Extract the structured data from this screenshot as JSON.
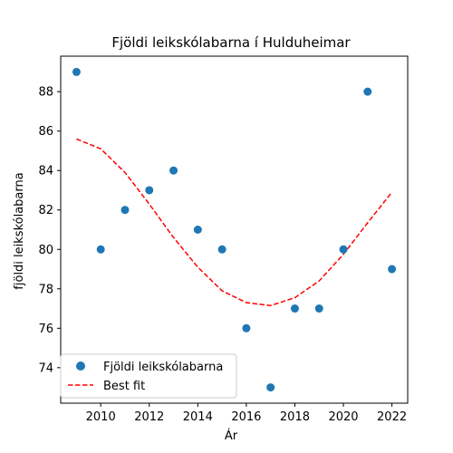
{
  "chart_data": {
    "type": "scatter",
    "title": "Fjöldi leikskólabarna í Hulduheimar",
    "xlabel": "Ár",
    "ylabel": "fjöldi leikskólabarna",
    "xlim": [
      2008.35,
      2022.65
    ],
    "ylim": [
      72.2,
      89.8
    ],
    "xticks": [
      2010,
      2012,
      2014,
      2016,
      2018,
      2020,
      2022
    ],
    "yticks": [
      74,
      76,
      78,
      80,
      82,
      84,
      86,
      88
    ],
    "grid": false,
    "legend_position": "lower-left",
    "series": [
      {
        "name": "Fjöldi leikskólabarna",
        "kind": "scatter",
        "color": "#1f77b4",
        "x": [
          2009,
          2010,
          2011,
          2012,
          2013,
          2014,
          2015,
          2016,
          2017,
          2018,
          2019,
          2020,
          2021,
          2022
        ],
        "y": [
          89,
          80,
          82,
          83,
          84,
          81,
          80,
          76,
          73,
          77,
          77,
          80,
          88,
          79
        ]
      },
      {
        "name": "Best fit",
        "kind": "line",
        "style": "dashed",
        "color": "#ff0000",
        "x": [
          2009,
          2010,
          2011,
          2012,
          2013,
          2014,
          2015,
          2016,
          2017,
          2018,
          2019,
          2020,
          2021,
          2022
        ],
        "y": [
          85.6,
          85.1,
          83.9,
          82.3,
          80.6,
          79.1,
          77.9,
          77.3,
          77.15,
          77.55,
          78.4,
          79.75,
          81.35,
          82.9
        ]
      }
    ]
  }
}
